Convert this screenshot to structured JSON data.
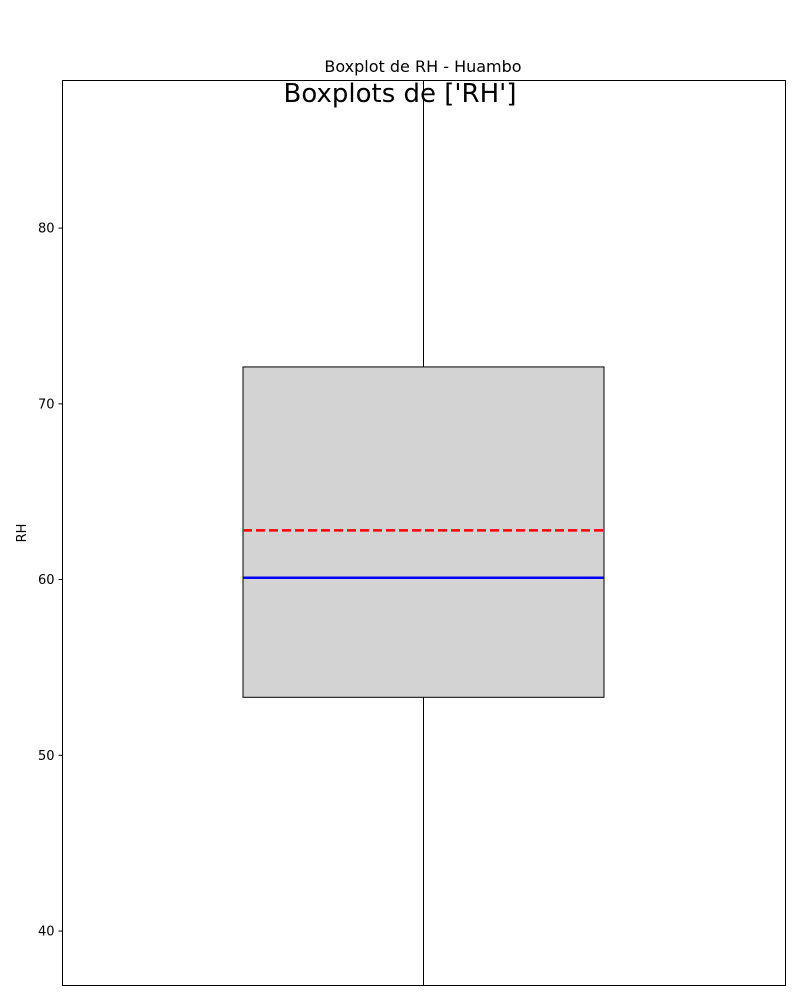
{
  "chart_data": {
    "type": "box",
    "suptitle": "Boxplots de ['RH']",
    "title": "Boxplot de RH - Huambo",
    "xlabel": "",
    "ylabel": "RH",
    "ylim": [
      36.9,
      88.4
    ],
    "yticks": [
      40,
      50,
      60,
      70,
      80
    ],
    "grid": false,
    "box": {
      "q1": 53.3,
      "median": 60.1,
      "q3": 72.1,
      "mean": 62.8,
      "whisker_low": 36.9,
      "whisker_high": 88.4
    },
    "colors": {
      "box_fill": "#d3d3d3",
      "median": "#0000ff",
      "mean": "#ff0000",
      "edge": "#000000"
    }
  }
}
